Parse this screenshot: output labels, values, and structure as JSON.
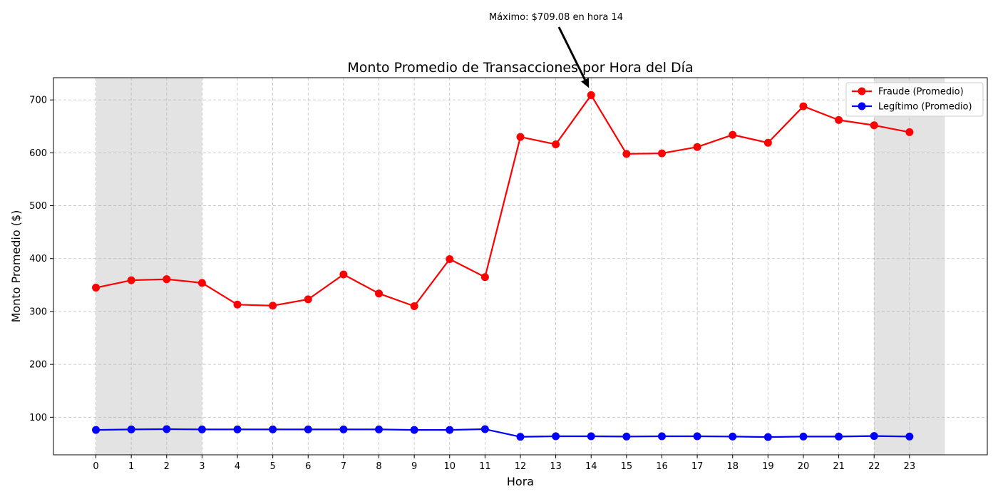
{
  "chart_data": {
    "type": "line",
    "title": "Monto Promedio de Transacciones por Hora del Día",
    "xlabel": "Hora",
    "ylabel": "Monto Promedio ($)",
    "x": [
      0,
      1,
      2,
      3,
      4,
      5,
      6,
      7,
      8,
      9,
      10,
      11,
      12,
      13,
      14,
      15,
      16,
      17,
      18,
      19,
      20,
      21,
      22,
      23
    ],
    "x_ticks": [
      "0",
      "1",
      "2",
      "3",
      "4",
      "5",
      "6",
      "7",
      "8",
      "9",
      "10",
      "11",
      "12",
      "13",
      "14",
      "15",
      "16",
      "17",
      "18",
      "19",
      "20",
      "21",
      "22",
      "23"
    ],
    "y_ticks": [
      "100",
      "200",
      "300",
      "400",
      "500",
      "600",
      "700"
    ],
    "xlim": [
      -1.2,
      25.2
    ],
    "ylim": [
      29,
      742
    ],
    "grid": true,
    "legend_position": "top-right",
    "shaded_ranges": [
      [
        0,
        3
      ],
      [
        22,
        24
      ]
    ],
    "shade_color": "#e3e3e3",
    "series": [
      {
        "name": "Fraude (Promedio)",
        "color": "#ff0000",
        "marker": "circle",
        "values": [
          345,
          359,
          361,
          354,
          313,
          311,
          323,
          370,
          334,
          310,
          399,
          365,
          630,
          616,
          709.08,
          598,
          599,
          611,
          634,
          619,
          688,
          662,
          652,
          639
        ]
      },
      {
        "name": "Legítimo (Promedio)",
        "color": "#0000ff",
        "marker": "circle",
        "values": [
          76,
          77,
          77.5,
          77,
          77,
          77,
          77,
          77,
          77,
          76,
          76,
          77.5,
          63,
          64,
          64,
          63.5,
          64,
          64,
          63.5,
          62.5,
          63.5,
          63.5,
          64.5,
          63.5
        ]
      }
    ],
    "annotation": {
      "text": "Máximo: $709.08 en hora 14",
      "x": 14,
      "y": 709.08
    }
  }
}
